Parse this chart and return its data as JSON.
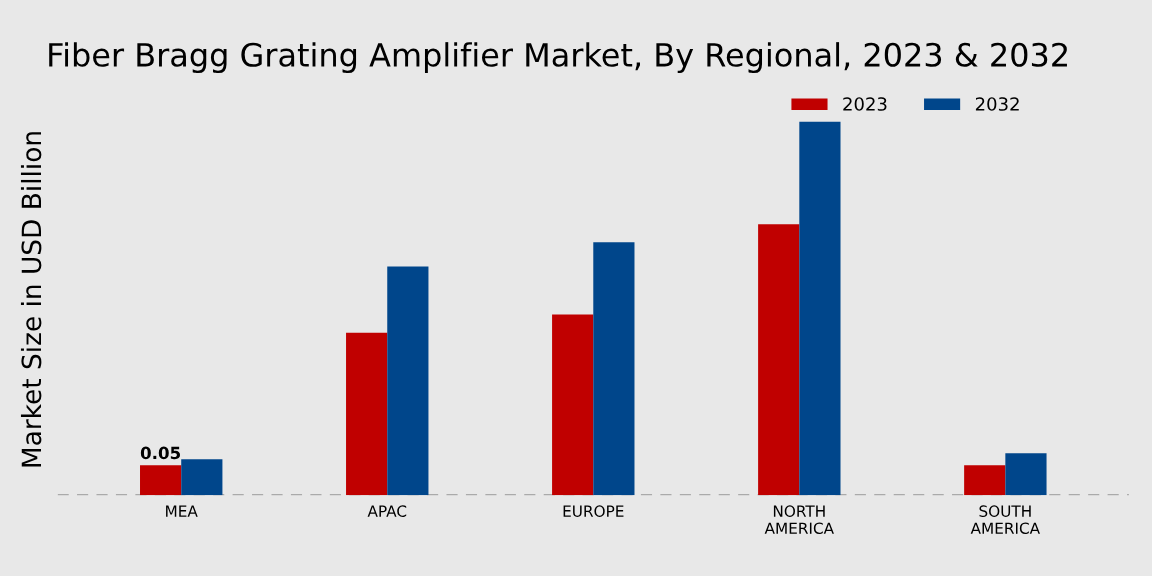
{
  "chart_data": {
    "type": "bar",
    "title": "Fiber Bragg Grating Amplifier Market, By Regional, 2023 & 2032",
    "ylabel": "Market Size in USD Billion",
    "categories": [
      "MEA",
      "APAC",
      "EUROPE",
      "NORTH\nAMERICA",
      "SOUTH\nAMERICA"
    ],
    "series": [
      {
        "name": "2023",
        "color": "#c00000",
        "values": [
          0.05,
          0.27,
          0.3,
          0.45,
          0.05
        ],
        "value_labels": [
          "0.05",
          null,
          null,
          null,
          null
        ]
      },
      {
        "name": "2032",
        "color": "#00468b",
        "values": [
          0.06,
          0.38,
          0.42,
          0.62,
          0.07
        ]
      }
    ],
    "ylim": [
      0,
      0.65
    ],
    "legend": "top right",
    "grid": false
  }
}
